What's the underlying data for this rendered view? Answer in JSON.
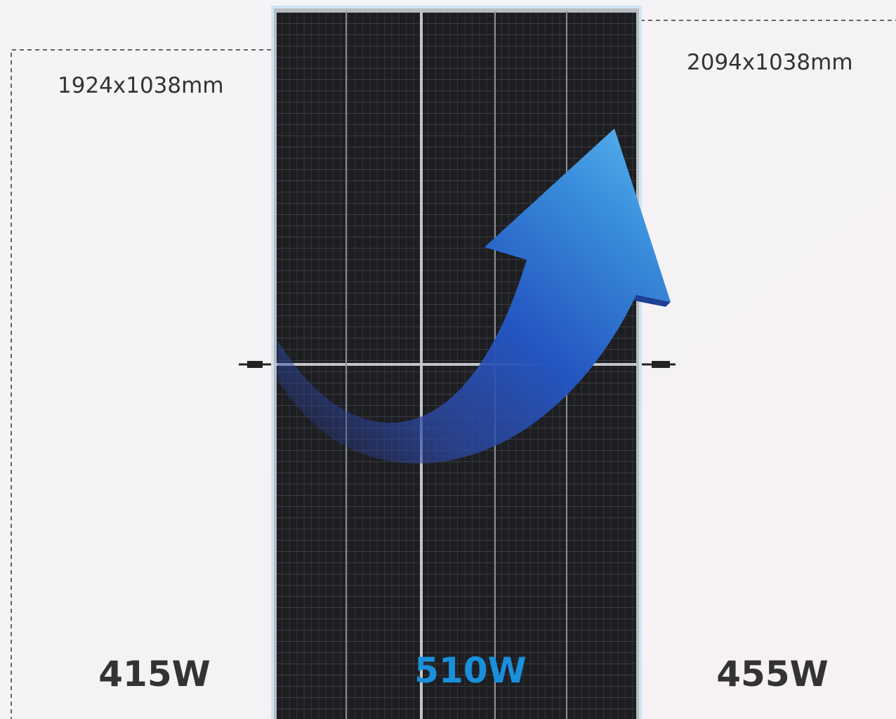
{
  "left": {
    "dimensions": "1924x1038mm",
    "power": "415W"
  },
  "center": {
    "power": "510W"
  },
  "right": {
    "dimensions": "2094x1038mm",
    "power": "455W"
  }
}
